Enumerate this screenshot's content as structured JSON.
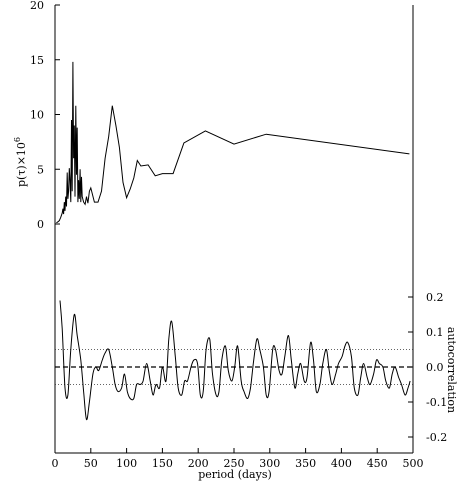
{
  "chart_data": [
    {
      "type": "line",
      "panel": "top",
      "ylabel": "p(τ)×10",
      "ylabel_exponent": "6",
      "ylim": [
        0,
        20
      ],
      "yticks": [
        0,
        5,
        10,
        15,
        20
      ],
      "xlim": [
        0,
        500
      ],
      "series": [
        {
          "x": [
            2,
            4,
            6,
            8,
            10,
            11,
            12,
            13,
            14,
            15,
            16,
            17,
            18,
            19,
            20,
            21,
            22,
            23,
            24,
            25,
            26,
            27,
            28,
            29,
            30,
            31,
            32,
            33,
            34,
            35,
            36,
            37,
            38,
            40,
            42,
            44,
            46,
            48,
            50,
            55,
            60,
            65,
            70,
            75,
            80,
            85,
            90,
            95,
            100,
            105,
            110,
            115,
            120,
            130,
            140,
            150,
            165,
            180,
            210,
            250,
            295,
            495
          ],
          "y": [
            0.1,
            0.2,
            0.3,
            0.6,
            1.0,
            1.4,
            0.9,
            2.0,
            1.2,
            2.5,
            1.6,
            4.7,
            2.3,
            3.0,
            5.1,
            4.0,
            2.0,
            9.5,
            3.0,
            14.8,
            6.0,
            9.0,
            2.5,
            10.8,
            4.5,
            8.8,
            2.0,
            4.0,
            2.3,
            5.0,
            2.0,
            4.3,
            2.5,
            2.0,
            1.8,
            2.5,
            1.9,
            3.0,
            3.3,
            2.0,
            2.0,
            3.0,
            6.0,
            8.0,
            10.8,
            9.0,
            7.0,
            3.8,
            2.4,
            3.2,
            4.2,
            5.8,
            5.3,
            5.4,
            4.4,
            4.6,
            4.6,
            7.4,
            8.5,
            7.3,
            8.2,
            6.4
          ]
        }
      ]
    },
    {
      "type": "line",
      "panel": "bottom",
      "ylabel": "autocorrelation",
      "ylim": [
        -0.2,
        0.2
      ],
      "yticks": [
        -0.2,
        -0.1,
        0.0,
        0.1,
        0.2
      ],
      "ytick_labels": [
        "-0.2",
        "-0.1",
        "0.0",
        "0.1",
        "0.2"
      ],
      "xlim": [
        0,
        500
      ],
      "baseline": 0.0,
      "significance": [
        0.05,
        -0.05
      ],
      "series": [
        {
          "x": [
            7,
            10,
            14,
            18,
            22,
            27,
            31,
            36,
            40,
            44,
            48,
            53,
            57,
            61,
            66,
            70,
            75,
            80,
            84,
            88,
            93,
            97,
            101,
            105,
            110,
            114,
            119,
            123,
            128,
            133,
            137,
            141,
            146,
            150,
            155,
            159,
            163,
            168,
            172,
            177,
            181,
            185,
            190,
            194,
            199,
            203,
            207,
            211,
            216,
            220,
            225,
            229,
            233,
            238,
            242,
            247,
            251,
            255,
            260,
            264,
            269,
            273,
            277,
            282,
            286,
            291,
            295,
            299,
            304,
            308,
            313,
            317,
            321,
            326,
            330,
            335,
            339,
            343,
            348,
            352,
            357,
            361,
            365,
            370,
            374,
            379,
            383,
            387,
            392,
            396,
            401,
            405,
            409,
            414,
            418,
            423,
            427,
            431,
            436,
            440,
            445,
            449,
            453,
            458,
            462,
            467,
            471,
            475,
            480,
            484,
            489,
            493,
            496
          ],
          "y": [
            0.19,
            0.11,
            -0.06,
            -0.08,
            0.05,
            0.15,
            0.09,
            0.02,
            -0.07,
            -0.15,
            -0.1,
            -0.02,
            0.0,
            -0.01,
            0.02,
            0.04,
            0.05,
            0.0,
            -0.05,
            -0.07,
            -0.06,
            -0.02,
            -0.07,
            -0.09,
            -0.09,
            -0.05,
            -0.05,
            -0.04,
            0.01,
            -0.04,
            -0.08,
            -0.05,
            -0.06,
            0.0,
            -0.04,
            0.08,
            0.13,
            0.03,
            -0.06,
            -0.08,
            -0.04,
            -0.04,
            0.0,
            0.02,
            0.01,
            -0.08,
            -0.07,
            0.05,
            0.08,
            -0.02,
            -0.08,
            -0.07,
            0.02,
            0.06,
            -0.01,
            -0.04,
            0.0,
            0.06,
            -0.04,
            -0.07,
            -0.09,
            -0.06,
            0.01,
            0.08,
            0.05,
            0.0,
            -0.08,
            -0.07,
            0.05,
            0.05,
            -0.01,
            -0.02,
            0.03,
            0.09,
            0.02,
            -0.06,
            -0.02,
            0.01,
            -0.04,
            -0.03,
            0.07,
            0.02,
            -0.07,
            -0.05,
            0.01,
            0.05,
            -0.01,
            -0.05,
            -0.02,
            0.01,
            0.03,
            0.06,
            0.07,
            0.03,
            -0.06,
            -0.08,
            -0.03,
            0.01,
            -0.03,
            -0.05,
            -0.02,
            0.02,
            0.01,
            0.0,
            -0.04,
            -0.06,
            -0.02,
            0.0,
            -0.03,
            -0.05,
            -0.08,
            -0.06,
            -0.04
          ]
        }
      ]
    }
  ],
  "xaxis": {
    "label": "period (days)",
    "ticks": [
      0,
      50,
      100,
      150,
      200,
      250,
      300,
      350,
      400,
      450,
      500
    ]
  }
}
